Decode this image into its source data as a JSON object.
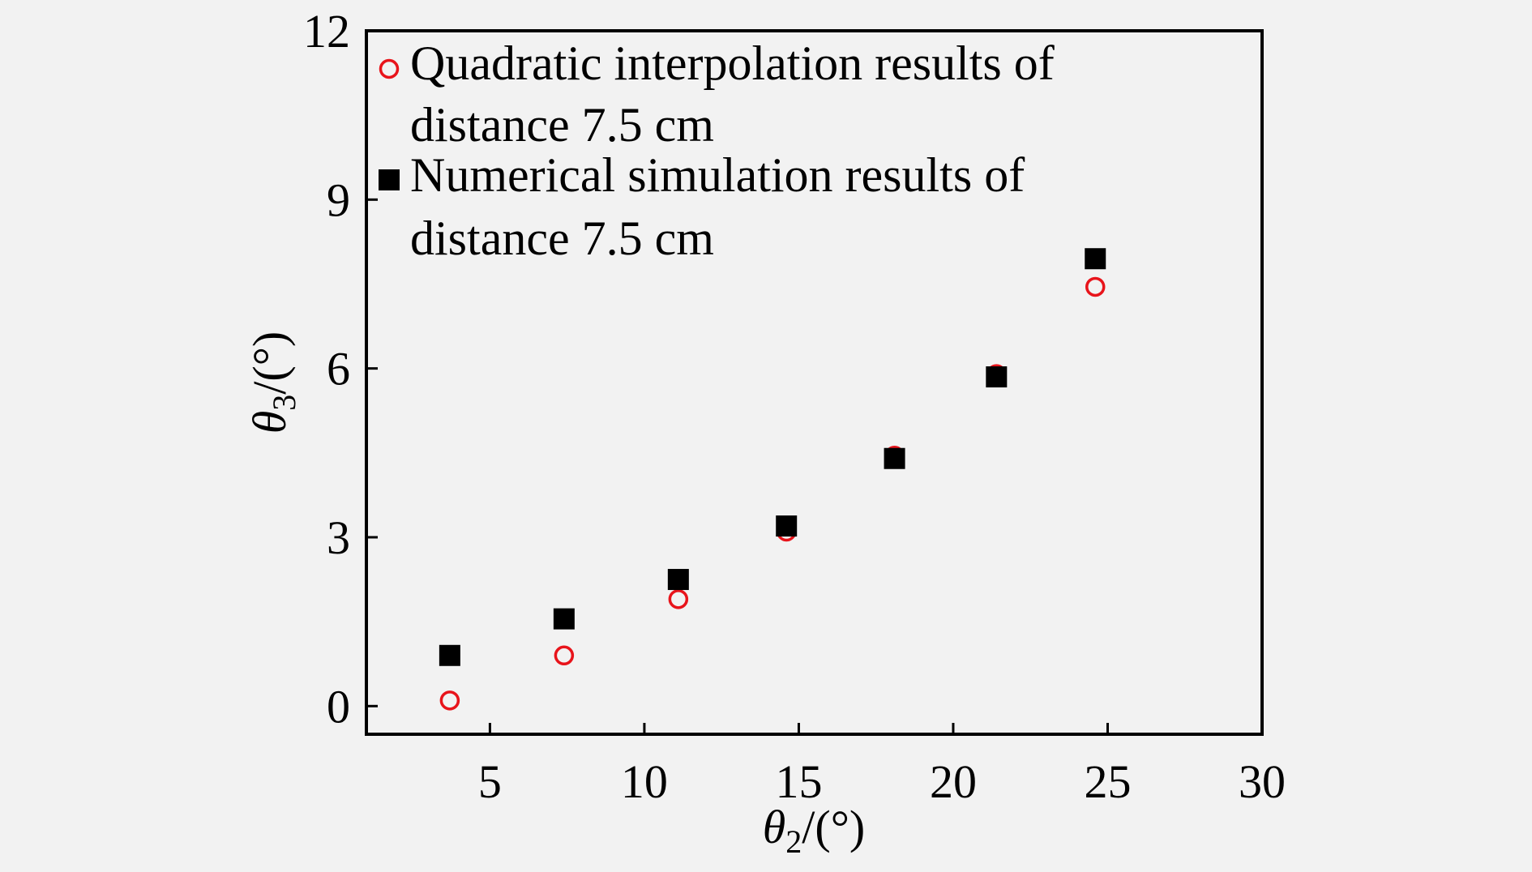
{
  "chart_data": {
    "type": "scatter",
    "xlabel": {
      "symbol": "θ",
      "subscript": "2",
      "unit": "/(°)"
    },
    "ylabel": {
      "symbol": "θ",
      "subscript": "3",
      "unit": "/(°)"
    },
    "xlim": [
      1,
      30
    ],
    "ylim": [
      -0.5,
      12
    ],
    "x_ticks": [
      5,
      10,
      15,
      20,
      25,
      30
    ],
    "y_ticks": [
      0,
      3,
      6,
      9,
      12
    ],
    "x_tick_labels": [
      "5",
      "10",
      "15",
      "20",
      "25",
      "30"
    ],
    "y_tick_labels": [
      "0",
      "3",
      "6",
      "9",
      "12"
    ],
    "legend_position": "top-left",
    "grid": false,
    "series": [
      {
        "name": "Quadratic interpolation results of distance 7.5 cm",
        "name_lines": [
          "Quadratic interpolation results of",
          "distance 7.5 cm"
        ],
        "marker": "open-circle",
        "color": "#e8141b",
        "points": [
          {
            "x": 3.7,
            "y": 0.1
          },
          {
            "x": 7.4,
            "y": 0.9
          },
          {
            "x": 11.1,
            "y": 1.9
          },
          {
            "x": 14.6,
            "y": 3.1
          },
          {
            "x": 18.1,
            "y": 4.45
          },
          {
            "x": 21.4,
            "y": 5.9
          },
          {
            "x": 24.6,
            "y": 7.45
          }
        ]
      },
      {
        "name": "Numerical simulation results of distance 7.5 cm",
        "name_lines": [
          "Numerical simulation results of",
          "distance 7.5 cm"
        ],
        "marker": "filled-square",
        "color": "#000000",
        "points": [
          {
            "x": 3.7,
            "y": 0.9
          },
          {
            "x": 7.4,
            "y": 1.55
          },
          {
            "x": 11.1,
            "y": 2.25
          },
          {
            "x": 14.6,
            "y": 3.2
          },
          {
            "x": 18.1,
            "y": 4.4
          },
          {
            "x": 21.4,
            "y": 5.85
          },
          {
            "x": 24.6,
            "y": 7.95
          }
        ]
      }
    ]
  }
}
